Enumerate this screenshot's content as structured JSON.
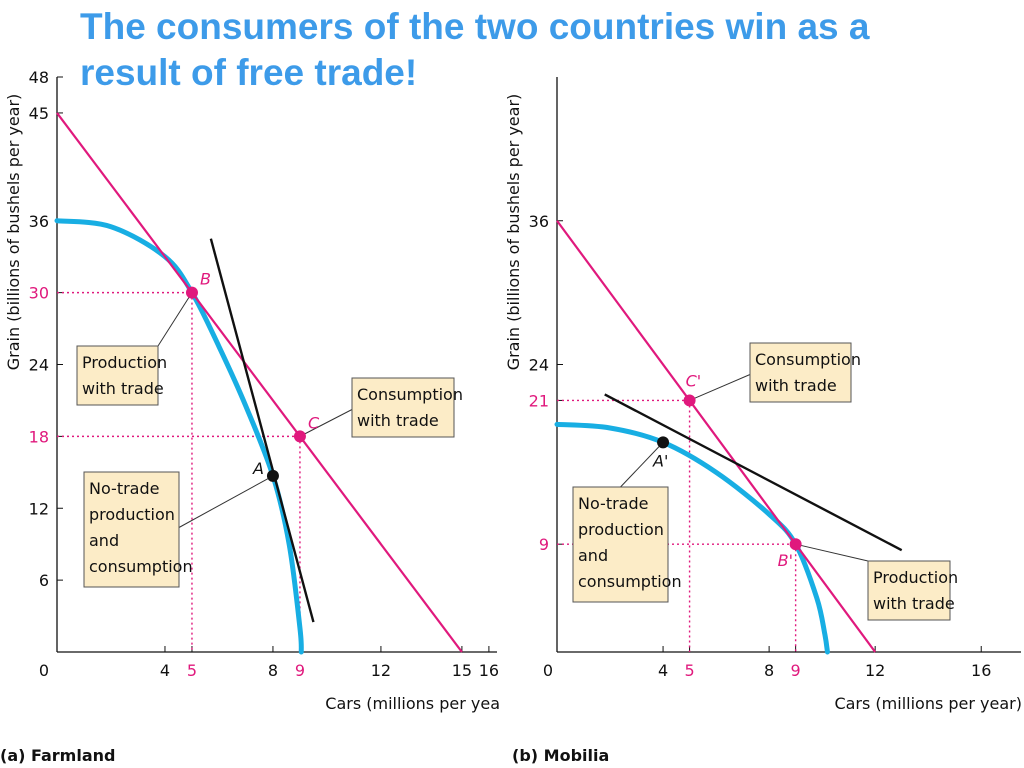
{
  "title": "The consumers of the two countries win as a result of free trade!",
  "chart_data": [
    {
      "type": "line",
      "panel_label": "(a) Farmland",
      "xlabel": "Cars (millions per yea",
      "ylabel": "Grain (billions of bushels per year)",
      "xlim": [
        0,
        16.3
      ],
      "ylim": [
        0,
        48
      ],
      "x_ticks": [
        "0",
        "4",
        "5",
        "8",
        "9",
        "12",
        "15",
        "16"
      ],
      "y_ticks": [
        "6",
        "12",
        "18",
        "24",
        "30",
        "36",
        "45",
        "48"
      ],
      "highlight_ticks": [
        "5",
        "9",
        "18",
        "30"
      ],
      "colors": {
        "ppf": "#18aee3",
        "trade_line": "#e0197d",
        "tangent": "#111111",
        "point_trade": "#e0197d",
        "point_notrade": "#111111"
      },
      "series": [
        {
          "role": "ppf",
          "points": [
            [
              0,
              36
            ],
            [
              2,
              35.5
            ],
            [
              4,
              33
            ],
            [
              5,
              30
            ],
            [
              6,
              25.5
            ],
            [
              7,
              20.5
            ],
            [
              8,
              14.7
            ],
            [
              8.6,
              9
            ],
            [
              9,
              2
            ],
            [
              9.05,
              0
            ]
          ]
        },
        {
          "role": "trade_line",
          "points": [
            [
              0,
              45
            ],
            [
              15,
              0
            ]
          ]
        },
        {
          "role": "tangent",
          "points": [
            [
              5.7,
              34.5
            ],
            [
              9.5,
              2.5
            ]
          ]
        }
      ],
      "points": [
        {
          "label": "B",
          "x": 5,
          "y": 30,
          "kind": "trade"
        },
        {
          "label": "C",
          "x": 9,
          "y": 18,
          "kind": "trade"
        },
        {
          "label": "A",
          "x": 8,
          "y": 14.7,
          "kind": "notrade"
        }
      ],
      "annotations": [
        {
          "lines": [
            "Production",
            "with trade"
          ],
          "points_to": "B"
        },
        {
          "lines": [
            "Consumption",
            "with trade"
          ],
          "points_to": "C"
        },
        {
          "lines": [
            "No-trade",
            "production",
            "and",
            "consumption"
          ],
          "points_to": "A"
        }
      ]
    },
    {
      "type": "line",
      "panel_label": "(b) Mobilia",
      "xlabel": "Cars (millions per year)",
      "ylabel": "Grain (billions of bushels per year)",
      "xlim": [
        0,
        17.5
      ],
      "ylim": [
        0,
        48
      ],
      "x_ticks": [
        "0",
        "4",
        "5",
        "8",
        "9",
        "12",
        "16"
      ],
      "y_ticks": [
        "9",
        "21",
        "24",
        "36"
      ],
      "highlight_ticks": [
        "5",
        "9",
        "21"
      ],
      "colors": {
        "ppf": "#18aee3",
        "trade_line": "#e0197d",
        "tangent": "#111111",
        "point_trade": "#e0197d",
        "point_notrade": "#111111"
      },
      "series": [
        {
          "role": "ppf",
          "points": [
            [
              0,
              19
            ],
            [
              2,
              18.7
            ],
            [
              4,
              17.5
            ],
            [
              6,
              15
            ],
            [
              8,
              11.5
            ],
            [
              9,
              9
            ],
            [
              9.8,
              4.5
            ],
            [
              10.1,
              1.5
            ],
            [
              10.2,
              0
            ]
          ]
        },
        {
          "role": "trade_line",
          "points": [
            [
              0,
              36
            ],
            [
              12,
              0
            ]
          ]
        },
        {
          "role": "tangent",
          "points": [
            [
              1.8,
              21.5
            ],
            [
              13,
              8.5
            ]
          ]
        }
      ],
      "points": [
        {
          "label": "C'",
          "x": 5,
          "y": 21,
          "kind": "trade"
        },
        {
          "label": "B'",
          "x": 9,
          "y": 9,
          "kind": "trade"
        },
        {
          "label": "A'",
          "x": 4,
          "y": 17.5,
          "kind": "notrade"
        }
      ],
      "annotations": [
        {
          "lines": [
            "Consumption",
            "with trade"
          ],
          "points_to": "C'"
        },
        {
          "lines": [
            "No-trade",
            "production",
            "and",
            "consumption"
          ],
          "points_to": "A'"
        },
        {
          "lines": [
            "Production",
            "with trade"
          ],
          "points_to": "B'"
        }
      ]
    }
  ]
}
